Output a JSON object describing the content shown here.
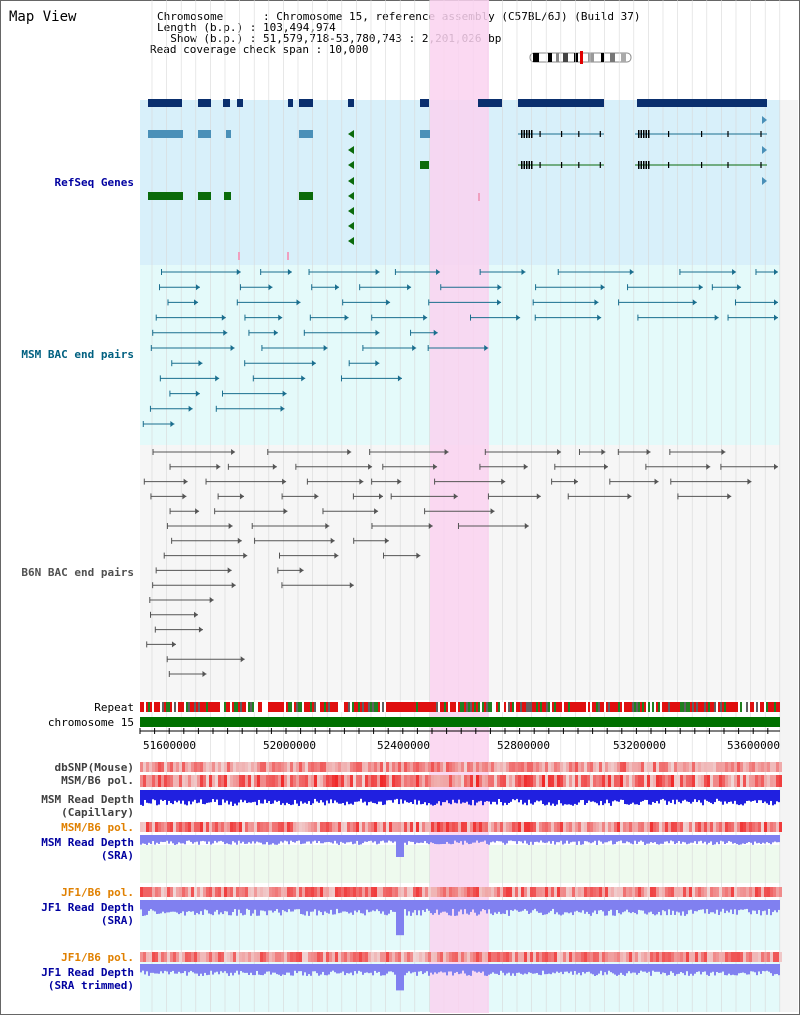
{
  "view": {
    "title": "Map View"
  },
  "info": {
    "chromosome_line": "Chromosome      : Chromosome 15, reference assembly (C57BL/6J) (Build 37)",
    "length_line": "Length (b.p.) : 103,494,974",
    "show_line": "  Show (b.p.) : 51,579,718-53,780,743 : 2,201,026 bp",
    "span_line": "Read coverage check span : 10,000"
  },
  "tracks": {
    "refseq": "RefSeq Genes",
    "msm_bac": "MSM BAC end pairs",
    "b6n_bac": "B6N BAC end pairs",
    "repeat": "Repeat",
    "chromosome": "chromosome 15",
    "dbsnp": "dbSNP(Mouse)",
    "msm_b6_pol_1": "MSM/B6 pol.",
    "msm_depth_cap_1": "MSM Read Depth",
    "msm_depth_cap_2": "(Capillary)",
    "msm_b6_pol_2": "MSM/B6 pol.",
    "msm_depth_sra_1": "MSM Read Depth",
    "msm_depth_sra_2": "(SRA)",
    "jf1_b6_pol_1": "JF1/B6 pol.",
    "jf1_depth_sra_1": "JF1 Read Depth",
    "jf1_depth_sra_2": "(SRA)",
    "jf1_b6_pol_2": "JF1/B6 pol.",
    "jf1_depth_trim_1": "JF1 Read Depth",
    "jf1_depth_trim_2": "(SRA trimmed)"
  },
  "axis": {
    "ticks": [
      "51600000",
      "52000000",
      "52400000",
      "52800000",
      "53200000",
      "53600000"
    ]
  },
  "colors": {
    "refseq_bg": "#d8f0fa",
    "msm_bg": "#e4fafa",
    "highlight": "#fad2f0",
    "gene_dark": "#0a2f6e",
    "gene_mid": "#4a90b8",
    "gene_green": "#0a6a0a",
    "msm_line": "#1a6e8e",
    "b6n_line": "#555555",
    "chrom_green": "#007000",
    "label_blue": "#0000a0",
    "label_teal": "#006080",
    "label_orange": "#e08000",
    "depth_blue": "#2020e0",
    "depth_light": "#8080f0"
  }
}
